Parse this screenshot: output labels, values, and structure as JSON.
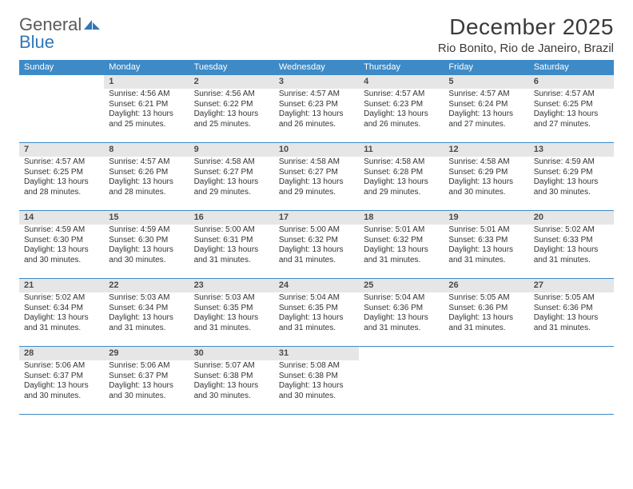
{
  "logo": {
    "word1": "General",
    "word2": "Blue",
    "shape_color": "#2f77bb",
    "text_color_main": "#5a5a5a",
    "text_color_accent": "#2f77bb"
  },
  "header": {
    "month_title": "December 2025",
    "location": "Rio Bonito, Rio de Janeiro, Brazil"
  },
  "calendar": {
    "type": "table",
    "header_bg": "#3d8ac7",
    "header_fg": "#ffffff",
    "row_border_color": "#3d8ac7",
    "daynum_bg": "#e6e6e6",
    "daynum_fg": "#4a4a4a",
    "body_fg": "#333333",
    "weekday_fontsize": 11,
    "daynum_fontsize": 11,
    "info_fontsize": 10,
    "weekdays": [
      "Sunday",
      "Monday",
      "Tuesday",
      "Wednesday",
      "Thursday",
      "Friday",
      "Saturday"
    ],
    "weeks": [
      [
        {
          "n": "",
          "empty": true,
          "blank": true
        },
        {
          "n": "1",
          "sr": "4:56 AM",
          "ss": "6:21 PM",
          "dl": "13 hours and 25 minutes."
        },
        {
          "n": "2",
          "sr": "4:56 AM",
          "ss": "6:22 PM",
          "dl": "13 hours and 25 minutes."
        },
        {
          "n": "3",
          "sr": "4:57 AM",
          "ss": "6:23 PM",
          "dl": "13 hours and 26 minutes."
        },
        {
          "n": "4",
          "sr": "4:57 AM",
          "ss": "6:23 PM",
          "dl": "13 hours and 26 minutes."
        },
        {
          "n": "5",
          "sr": "4:57 AM",
          "ss": "6:24 PM",
          "dl": "13 hours and 27 minutes."
        },
        {
          "n": "6",
          "sr": "4:57 AM",
          "ss": "6:25 PM",
          "dl": "13 hours and 27 minutes."
        }
      ],
      [
        {
          "n": "7",
          "sr": "4:57 AM",
          "ss": "6:25 PM",
          "dl": "13 hours and 28 minutes."
        },
        {
          "n": "8",
          "sr": "4:57 AM",
          "ss": "6:26 PM",
          "dl": "13 hours and 28 minutes."
        },
        {
          "n": "9",
          "sr": "4:58 AM",
          "ss": "6:27 PM",
          "dl": "13 hours and 29 minutes."
        },
        {
          "n": "10",
          "sr": "4:58 AM",
          "ss": "6:27 PM",
          "dl": "13 hours and 29 minutes."
        },
        {
          "n": "11",
          "sr": "4:58 AM",
          "ss": "6:28 PM",
          "dl": "13 hours and 29 minutes."
        },
        {
          "n": "12",
          "sr": "4:58 AM",
          "ss": "6:29 PM",
          "dl": "13 hours and 30 minutes."
        },
        {
          "n": "13",
          "sr": "4:59 AM",
          "ss": "6:29 PM",
          "dl": "13 hours and 30 minutes."
        }
      ],
      [
        {
          "n": "14",
          "sr": "4:59 AM",
          "ss": "6:30 PM",
          "dl": "13 hours and 30 minutes."
        },
        {
          "n": "15",
          "sr": "4:59 AM",
          "ss": "6:30 PM",
          "dl": "13 hours and 30 minutes."
        },
        {
          "n": "16",
          "sr": "5:00 AM",
          "ss": "6:31 PM",
          "dl": "13 hours and 31 minutes."
        },
        {
          "n": "17",
          "sr": "5:00 AM",
          "ss": "6:32 PM",
          "dl": "13 hours and 31 minutes."
        },
        {
          "n": "18",
          "sr": "5:01 AM",
          "ss": "6:32 PM",
          "dl": "13 hours and 31 minutes."
        },
        {
          "n": "19",
          "sr": "5:01 AM",
          "ss": "6:33 PM",
          "dl": "13 hours and 31 minutes."
        },
        {
          "n": "20",
          "sr": "5:02 AM",
          "ss": "6:33 PM",
          "dl": "13 hours and 31 minutes."
        }
      ],
      [
        {
          "n": "21",
          "sr": "5:02 AM",
          "ss": "6:34 PM",
          "dl": "13 hours and 31 minutes."
        },
        {
          "n": "22",
          "sr": "5:03 AM",
          "ss": "6:34 PM",
          "dl": "13 hours and 31 minutes."
        },
        {
          "n": "23",
          "sr": "5:03 AM",
          "ss": "6:35 PM",
          "dl": "13 hours and 31 minutes."
        },
        {
          "n": "24",
          "sr": "5:04 AM",
          "ss": "6:35 PM",
          "dl": "13 hours and 31 minutes."
        },
        {
          "n": "25",
          "sr": "5:04 AM",
          "ss": "6:36 PM",
          "dl": "13 hours and 31 minutes."
        },
        {
          "n": "26",
          "sr": "5:05 AM",
          "ss": "6:36 PM",
          "dl": "13 hours and 31 minutes."
        },
        {
          "n": "27",
          "sr": "5:05 AM",
          "ss": "6:36 PM",
          "dl": "13 hours and 31 minutes."
        }
      ],
      [
        {
          "n": "28",
          "sr": "5:06 AM",
          "ss": "6:37 PM",
          "dl": "13 hours and 30 minutes."
        },
        {
          "n": "29",
          "sr": "5:06 AM",
          "ss": "6:37 PM",
          "dl": "13 hours and 30 minutes."
        },
        {
          "n": "30",
          "sr": "5:07 AM",
          "ss": "6:38 PM",
          "dl": "13 hours and 30 minutes."
        },
        {
          "n": "31",
          "sr": "5:08 AM",
          "ss": "6:38 PM",
          "dl": "13 hours and 30 minutes."
        },
        {
          "n": "",
          "empty": true,
          "blank": true
        },
        {
          "n": "",
          "empty": true,
          "blank": true
        },
        {
          "n": "",
          "empty": true,
          "blank": true
        }
      ]
    ],
    "labels": {
      "sunrise": "Sunrise:",
      "sunset": "Sunset:",
      "daylight": "Daylight:"
    }
  }
}
